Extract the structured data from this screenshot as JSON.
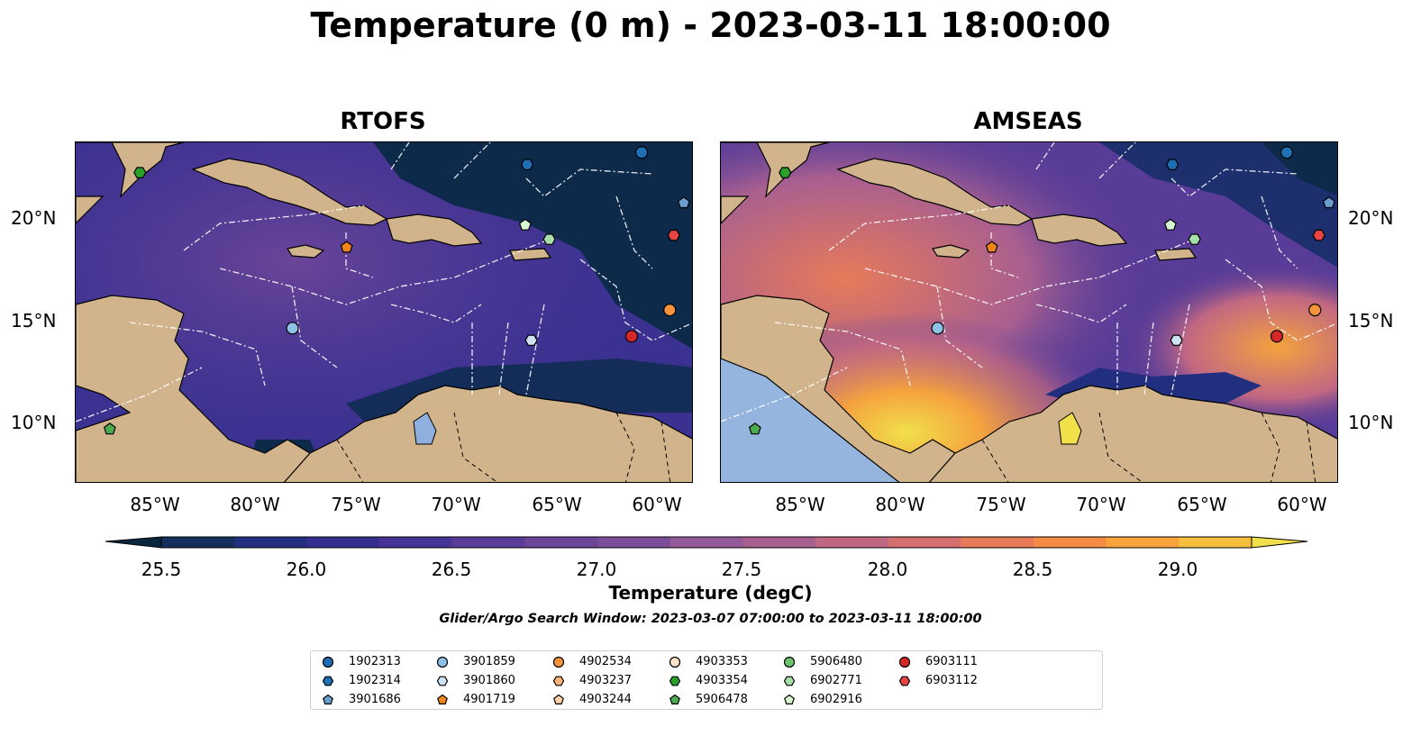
{
  "title": "Temperature (0 m) - 2023-03-11 18:00:00",
  "panels": [
    {
      "title": "RTOFS"
    },
    {
      "title": "AMSEAS"
    }
  ],
  "lat_labels": [
    "20°N",
    "15°N",
    "10°N"
  ],
  "lon_labels": [
    "85°W",
    "80°W",
    "75°W",
    "70°W",
    "65°W",
    "60°W"
  ],
  "colorbar": {
    "label": "Temperature (degC)",
    "ticks": [
      "25.5",
      "26.0",
      "26.5",
      "27.0",
      "27.5",
      "28.0",
      "28.5",
      "29.0"
    ],
    "colors": [
      "#0b2740",
      "#142f5c",
      "#222e7e",
      "#342f8e",
      "#463596",
      "#583c98",
      "#6a4598",
      "#7c4e99",
      "#935998",
      "#a85f90",
      "#c06783",
      "#d46f6f",
      "#e77a59",
      "#f48c46",
      "#f7a43c",
      "#f6be3c",
      "#f2e04b"
    ]
  },
  "search_window": "Glider/Argo Search Window: 2023-03-07 07:00:00 to 2023-03-11 18:00:00",
  "legend": [
    {
      "id": "1902313",
      "marker": "circle",
      "color": "#1f6fb4"
    },
    {
      "id": "1902314",
      "marker": "hexagon",
      "color": "#1f6fb4"
    },
    {
      "id": "3901686",
      "marker": "pentagon",
      "color": "#6a9fd0"
    },
    {
      "id": "3901859",
      "marker": "circle",
      "color": "#8fc0e6"
    },
    {
      "id": "3901860",
      "marker": "hexagon",
      "color": "#cfe3f5"
    },
    {
      "id": "4901719",
      "marker": "pentagon",
      "color": "#f08519"
    },
    {
      "id": "4902534",
      "marker": "circle",
      "color": "#f7943a"
    },
    {
      "id": "4903237",
      "marker": "hexagon",
      "color": "#fbb37a"
    },
    {
      "id": "4903244",
      "marker": "pentagon",
      "color": "#fdd0a5"
    },
    {
      "id": "4903353",
      "marker": "circle",
      "color": "#fde2cc"
    },
    {
      "id": "4903354",
      "marker": "hexagon",
      "color": "#2ba02b"
    },
    {
      "id": "5906478",
      "marker": "pentagon",
      "color": "#4cab4c"
    },
    {
      "id": "5906480",
      "marker": "circle",
      "color": "#6cc26c"
    },
    {
      "id": "6902771",
      "marker": "hexagon",
      "color": "#a7dea7"
    },
    {
      "id": "6902916",
      "marker": "pentagon",
      "color": "#d6f5d0"
    },
    {
      "id": "6903111",
      "marker": "circle",
      "color": "#d62728"
    },
    {
      "id": "6903112",
      "marker": "hexagon",
      "color": "#e84444"
    }
  ],
  "floats": [
    {
      "id": "1902313",
      "lon": -60.8,
      "lat": 23.5
    },
    {
      "id": "1902314",
      "lon": -66.5,
      "lat": 22.9
    },
    {
      "id": "3901686",
      "lon": -58.7,
      "lat": 21.0
    },
    {
      "id": "3901859",
      "lon": -78.2,
      "lat": 14.8
    },
    {
      "id": "3901860",
      "lon": -66.3,
      "lat": 14.2
    },
    {
      "id": "4901719",
      "lon": -75.5,
      "lat": 18.8
    },
    {
      "id": "4902534",
      "lon": -59.4,
      "lat": 15.7
    },
    {
      "id": "4903354",
      "lon": -85.8,
      "lat": 22.5
    },
    {
      "id": "5906478",
      "lon": -87.3,
      "lat": 9.8
    },
    {
      "id": "6902771",
      "lon": -65.4,
      "lat": 19.2
    },
    {
      "id": "6902916",
      "lon": -66.6,
      "lat": 19.9
    },
    {
      "id": "6903111",
      "lon": -61.3,
      "lat": 14.4
    },
    {
      "id": "6903112",
      "lon": -59.2,
      "lat": 19.4
    }
  ]
}
